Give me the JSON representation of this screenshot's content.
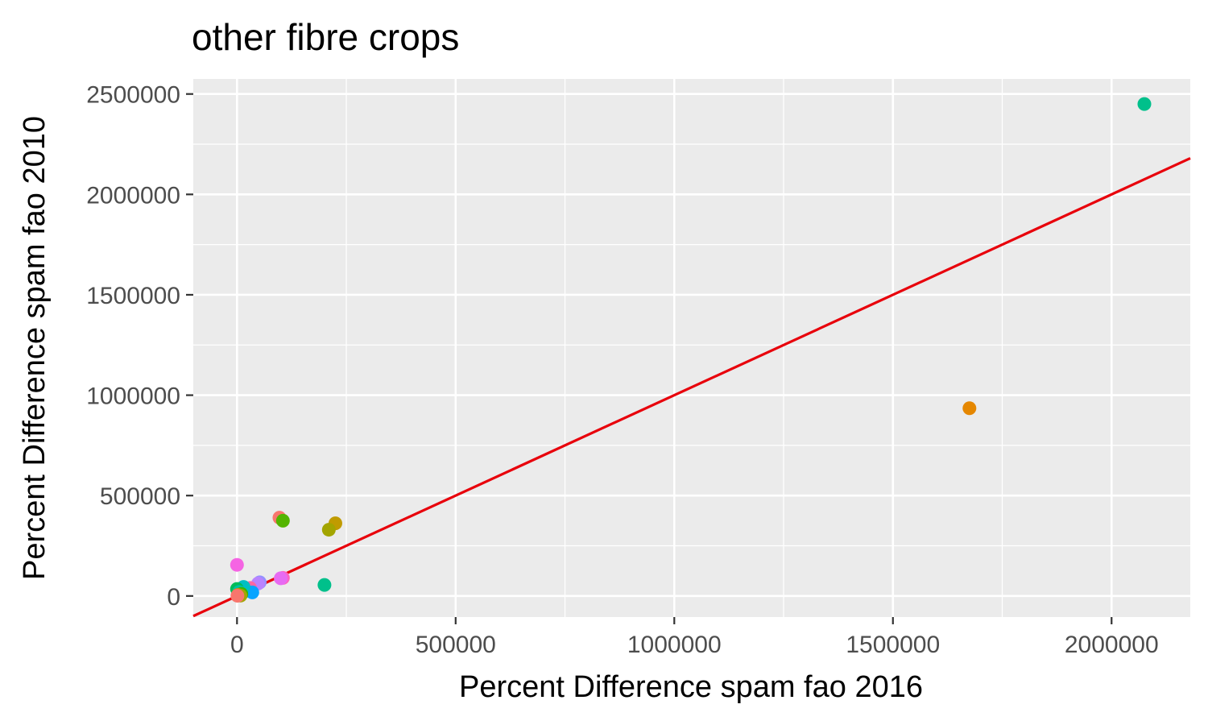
{
  "chart_data": {
    "type": "scatter",
    "title": "other fibre crops",
    "xlabel": "Percent Difference spam fao 2016",
    "ylabel": "Percent Difference spam fao 2010",
    "xlim": [
      -100000,
      2180000
    ],
    "ylim": [
      -105000,
      2575000
    ],
    "x_ticks": [
      0,
      500000,
      1000000,
      1500000,
      2000000
    ],
    "x_tick_labels": [
      "0",
      "500000",
      "1000000",
      "1500000",
      "2000000"
    ],
    "y_ticks": [
      0,
      500000,
      1000000,
      1500000,
      2000000,
      2500000
    ],
    "y_tick_labels": [
      "0",
      "500000",
      "1000000",
      "1500000",
      "2000000",
      "2500000"
    ],
    "grid": true,
    "legend": "none",
    "reference_line": {
      "slope": 1,
      "intercept": 0,
      "color": "#e8000b"
    },
    "points": [
      {
        "x": 2075000,
        "y": 2450000,
        "color": "#00c08b"
      },
      {
        "x": 1675000,
        "y": 935000,
        "color": "#e58700"
      },
      {
        "x": 97000,
        "y": 390000,
        "color": "#f8766d"
      },
      {
        "x": 105000,
        "y": 375000,
        "color": "#53b400"
      },
      {
        "x": 225000,
        "y": 362000,
        "color": "#c09b00"
      },
      {
        "x": 210000,
        "y": 330000,
        "color": "#a3a500"
      },
      {
        "x": 0,
        "y": 155000,
        "color": "#f564e3"
      },
      {
        "x": 105000,
        "y": 90000,
        "color": "#ff61c3"
      },
      {
        "x": 100000,
        "y": 88000,
        "color": "#e76bf3"
      },
      {
        "x": 200000,
        "y": 55000,
        "color": "#00c08b"
      },
      {
        "x": 52000,
        "y": 68000,
        "color": "#9590ff"
      },
      {
        "x": 48000,
        "y": 62000,
        "color": "#b983ff"
      },
      {
        "x": 30000,
        "y": 40000,
        "color": "#ff67a4"
      },
      {
        "x": 20000,
        "y": 25000,
        "color": "#00b6eb"
      },
      {
        "x": 35000,
        "y": 18000,
        "color": "#06a4ff"
      },
      {
        "x": 15000,
        "y": 45000,
        "color": "#00bfc4"
      },
      {
        "x": 0,
        "y": 35000,
        "color": "#00bc59"
      },
      {
        "x": 5000,
        "y": 20000,
        "color": "#00c1a3"
      },
      {
        "x": 10000,
        "y": 10000,
        "color": "#39b600"
      },
      {
        "x": 2000,
        "y": 5000,
        "color": "#e58700"
      },
      {
        "x": 8000,
        "y": 2000,
        "color": "#a3a500"
      },
      {
        "x": 1000,
        "y": 1000,
        "color": "#f8766d"
      }
    ]
  }
}
